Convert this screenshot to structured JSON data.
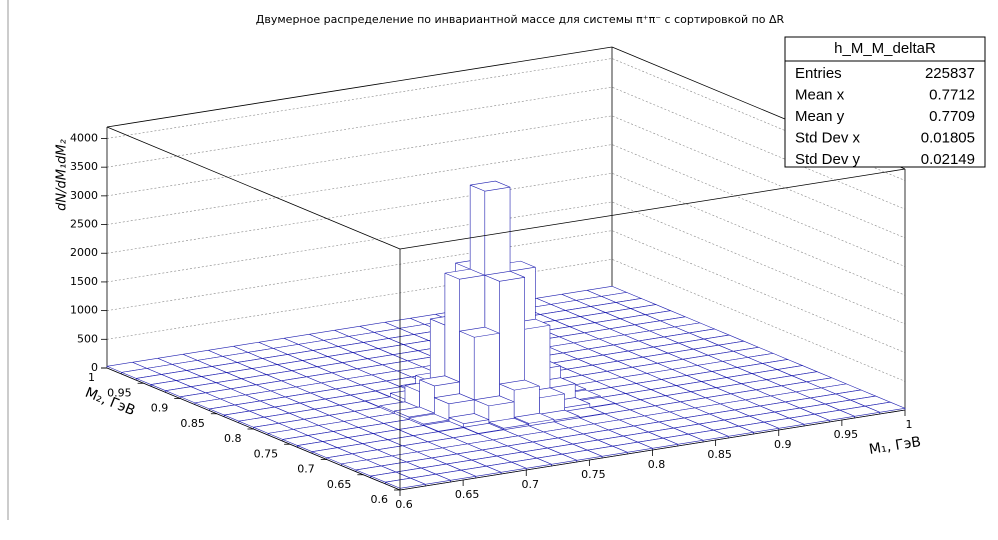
{
  "chart_data": {
    "type": "lego",
    "title": "Двумерное распределение по инвариантной массе для системы    π⁺π⁻ с сортировкой по   ΔR",
    "xlabel": "M₁, ГэВ",
    "ylabel": "M₂, ГэВ",
    "zlabel": "dN/dM₁dM₂",
    "xlim": [
      0.6,
      1
    ],
    "ylim": [
      0.6,
      1
    ],
    "zlim": [
      0,
      4200
    ],
    "xticks": [
      0.6,
      0.65,
      0.7,
      0.75,
      0.8,
      0.85,
      0.9,
      0.95,
      1
    ],
    "yticks": [
      0.6,
      0.65,
      0.7,
      0.75,
      0.8,
      0.85,
      0.9,
      0.95,
      1
    ],
    "zticks": [
      0,
      500,
      1000,
      1500,
      2000,
      2500,
      3000,
      3500,
      4000
    ],
    "grid": true,
    "color": "#1f1fb0",
    "xbins": [
      0.6,
      0.62,
      0.64,
      0.66,
      0.68,
      0.7,
      0.72,
      0.74,
      0.76,
      0.78,
      0.8,
      0.82,
      0.84,
      0.86,
      0.88,
      0.9,
      0.92,
      0.94,
      0.96,
      0.98,
      1
    ],
    "ybins": [
      0.6,
      0.62,
      0.64,
      0.66,
      0.68,
      0.7,
      0.72,
      0.74,
      0.76,
      0.78,
      0.8,
      0.82,
      0.84,
      0.86,
      0.88,
      0.9,
      0.92,
      0.94,
      0.96,
      0.98,
      1
    ],
    "z": [
      [
        30,
        30,
        30,
        30,
        30,
        30,
        30,
        30,
        30,
        30,
        30,
        30,
        30,
        30,
        30,
        30,
        30,
        30,
        30,
        30
      ],
      [
        30,
        30,
        30,
        30,
        30,
        30,
        30,
        30,
        30,
        30,
        30,
        30,
        30,
        30,
        30,
        30,
        30,
        30,
        30,
        30
      ],
      [
        30,
        30,
        30,
        30,
        30,
        30,
        30,
        30,
        30,
        30,
        30,
        30,
        30,
        30,
        30,
        30,
        30,
        30,
        30,
        30
      ],
      [
        30,
        30,
        30,
        30,
        30,
        30,
        30,
        30,
        30,
        30,
        30,
        30,
        30,
        30,
        30,
        30,
        30,
        30,
        30,
        30
      ],
      [
        30,
        30,
        30,
        30,
        30,
        30,
        30,
        30,
        30,
        30,
        30,
        30,
        30,
        30,
        30,
        30,
        30,
        30,
        30,
        30
      ],
      [
        30,
        30,
        30,
        30,
        30,
        30,
        36,
        56,
        72,
        56,
        36,
        30,
        30,
        30,
        30,
        30,
        30,
        30,
        30,
        30
      ],
      [
        30,
        30,
        30,
        30,
        30,
        36,
        100,
        340,
        545,
        340,
        100,
        36,
        30,
        30,
        30,
        30,
        30,
        30,
        30,
        30
      ],
      [
        30,
        30,
        30,
        30,
        30,
        56,
        340,
        1430,
        2335,
        1430,
        340,
        56,
        30,
        30,
        30,
        30,
        30,
        30,
        30,
        30
      ],
      [
        30,
        30,
        30,
        30,
        30,
        72,
        545,
        2335,
        3800,
        2335,
        545,
        72,
        30,
        30,
        30,
        30,
        30,
        30,
        30,
        30
      ],
      [
        30,
        30,
        30,
        30,
        30,
        56,
        340,
        1430,
        2335,
        1430,
        340,
        56,
        30,
        30,
        30,
        30,
        30,
        30,
        30,
        30
      ],
      [
        30,
        30,
        30,
        30,
        30,
        36,
        100,
        340,
        545,
        340,
        100,
        36,
        30,
        30,
        30,
        30,
        30,
        30,
        30,
        30
      ],
      [
        30,
        30,
        30,
        30,
        30,
        30,
        36,
        56,
        72,
        56,
        36,
        30,
        30,
        30,
        30,
        30,
        30,
        30,
        30,
        30
      ],
      [
        30,
        30,
        30,
        30,
        30,
        30,
        30,
        30,
        30,
        30,
        30,
        30,
        30,
        30,
        30,
        30,
        30,
        30,
        30,
        30
      ],
      [
        30,
        30,
        30,
        30,
        30,
        30,
        30,
        30,
        30,
        30,
        30,
        30,
        30,
        30,
        30,
        30,
        30,
        30,
        30,
        30
      ],
      [
        30,
        30,
        30,
        30,
        30,
        30,
        30,
        30,
        30,
        30,
        30,
        30,
        30,
        30,
        30,
        30,
        30,
        30,
        30,
        30
      ],
      [
        30,
        30,
        30,
        30,
        30,
        30,
        30,
        30,
        30,
        30,
        30,
        30,
        30,
        30,
        30,
        30,
        30,
        30,
        30,
        30
      ],
      [
        30,
        30,
        30,
        30,
        30,
        30,
        30,
        30,
        30,
        30,
        30,
        30,
        30,
        30,
        30,
        30,
        30,
        30,
        30,
        30
      ],
      [
        30,
        30,
        30,
        30,
        30,
        30,
        30,
        30,
        30,
        30,
        30,
        30,
        30,
        30,
        30,
        30,
        30,
        30,
        30,
        30
      ],
      [
        30,
        30,
        30,
        30,
        30,
        30,
        30,
        30,
        30,
        30,
        30,
        30,
        30,
        30,
        30,
        30,
        30,
        30,
        30,
        30
      ],
      [
        30,
        30,
        30,
        30,
        30,
        30,
        30,
        30,
        30,
        30,
        30,
        30,
        30,
        30,
        30,
        30,
        30,
        30,
        30,
        30
      ]
    ]
  },
  "stats": {
    "name": "h_M_M_deltaR",
    "rows": [
      [
        "Entries",
        225837
      ],
      [
        "Mean x",
        0.7712
      ],
      [
        "Mean y",
        0.7709
      ],
      [
        "Std Dev x",
        0.01805
      ],
      [
        "Std Dev y",
        0.02149
      ]
    ]
  }
}
